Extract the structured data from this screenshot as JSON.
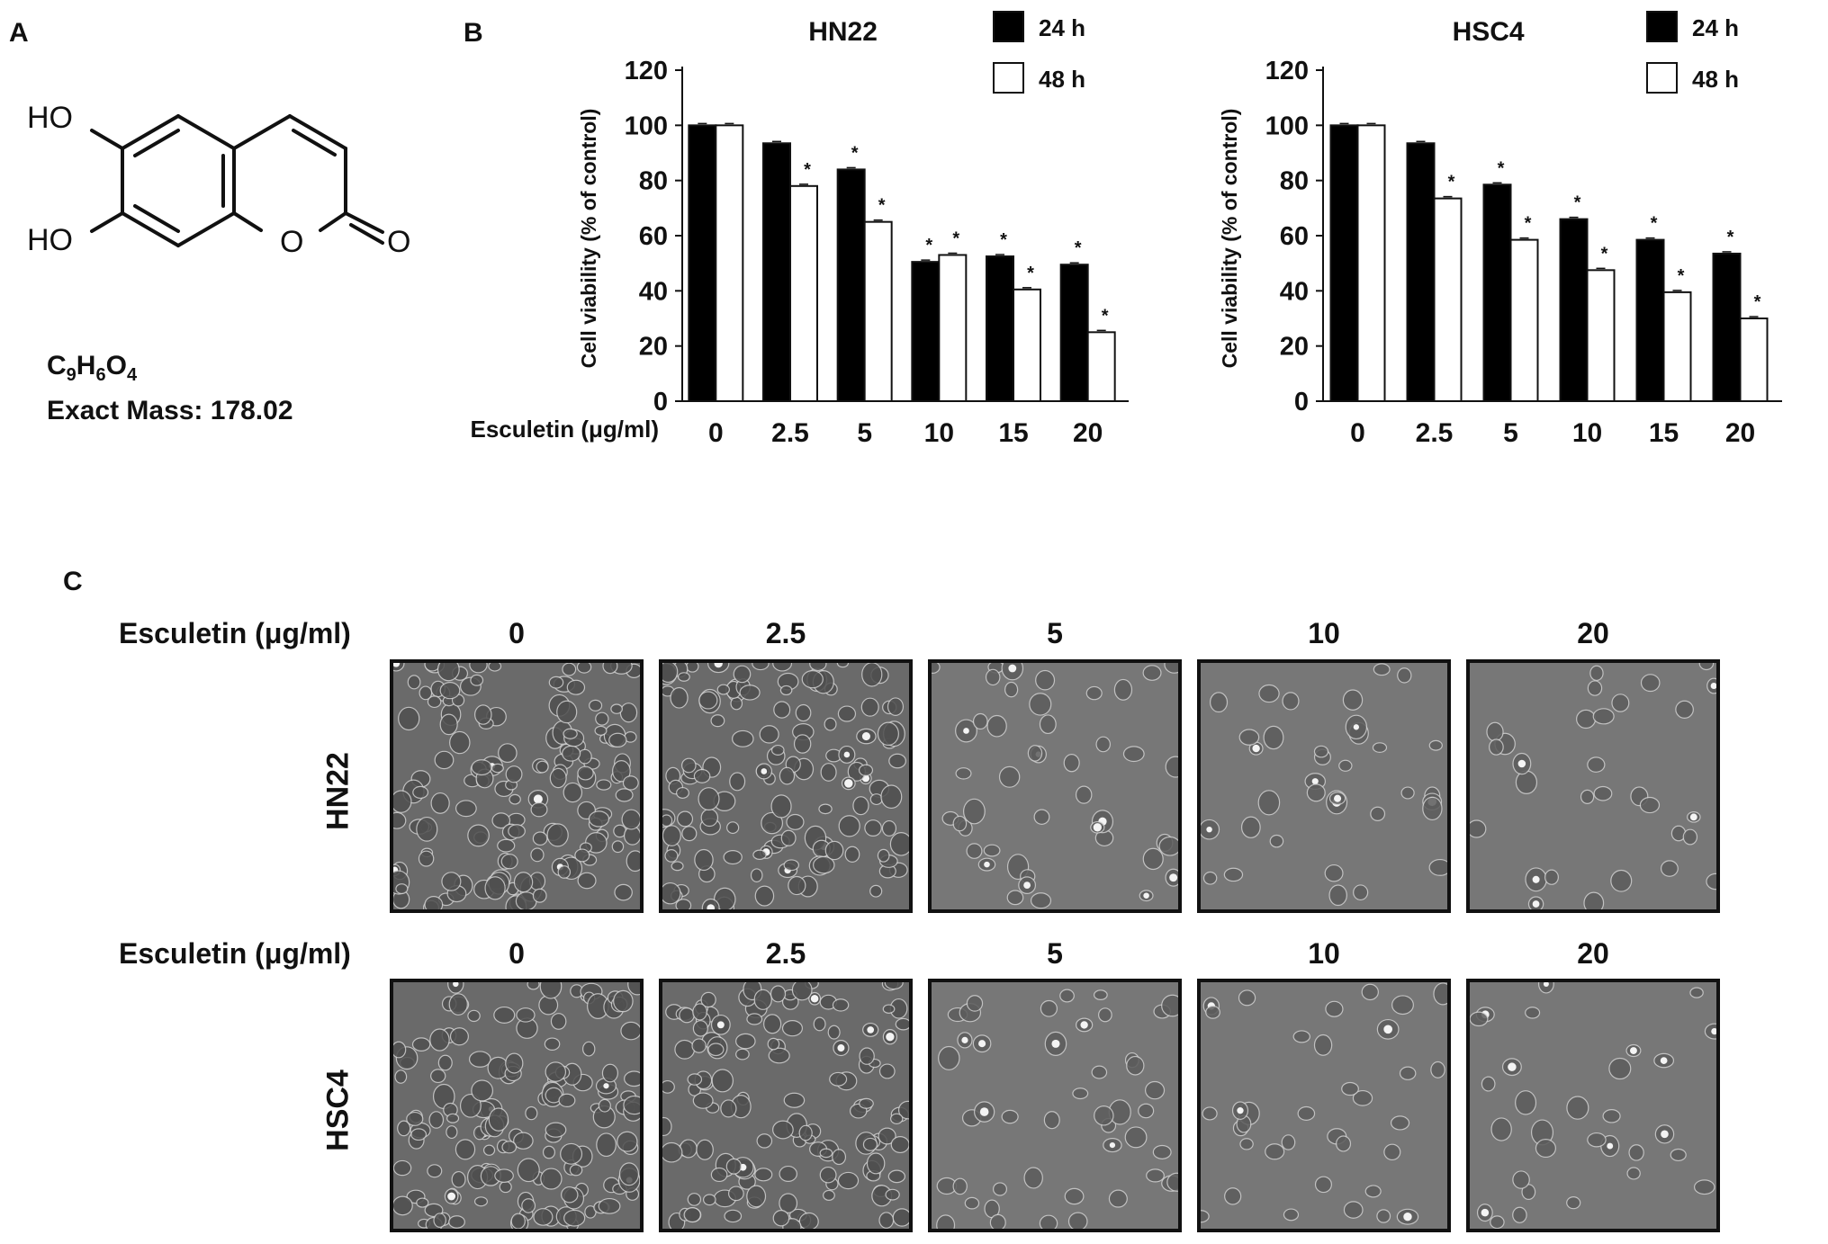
{
  "panels": {
    "a": "A",
    "b": "B",
    "c": "C"
  },
  "molecule": {
    "oh_top": "HO",
    "oh_bottom": "HO",
    "ring_o": "O",
    "carbonyl_o": "O",
    "formula_c": "C",
    "formula_c_sub": "9",
    "formula_h": "H",
    "formula_h_sub": "6",
    "formula_o": "O",
    "formula_o_sub": "4",
    "exact_mass": "Exact Mass: 178.02"
  },
  "chart_data": [
    {
      "type": "bar",
      "title": "HN22",
      "ylabel": "Cell viability (% of control)",
      "xlabel": "Esculetin (μg/ml)",
      "categories": [
        "0",
        "2.5",
        "5",
        "10",
        "15",
        "20"
      ],
      "ylim": [
        0,
        120
      ],
      "yticks": [
        "0",
        "20",
        "40",
        "60",
        "80",
        "100",
        "120"
      ],
      "legend_position": "top-right",
      "series": [
        {
          "name": "24 h",
          "color": "#000000",
          "values": [
            100,
            93.5,
            84,
            50.5,
            52.5,
            49.5
          ],
          "sig": [
            "",
            "",
            "*",
            "*",
            "*",
            "*"
          ]
        },
        {
          "name": "48 h",
          "color": "#ffffff",
          "values": [
            100,
            78,
            65,
            53,
            40.5,
            25
          ],
          "sig": [
            "",
            "*",
            "*",
            "*",
            "*",
            "*"
          ]
        }
      ]
    },
    {
      "type": "bar",
      "title": "HSC4",
      "ylabel": "Cell viability (% of control)",
      "xlabel": "",
      "categories": [
        "0",
        "2.5",
        "5",
        "10",
        "15",
        "20"
      ],
      "ylim": [
        0,
        120
      ],
      "yticks": [
        "0",
        "20",
        "40",
        "60",
        "80",
        "100",
        "120"
      ],
      "legend_position": "top-right",
      "series": [
        {
          "name": "24 h",
          "color": "#000000",
          "values": [
            100,
            93.5,
            78.5,
            66,
            58.5,
            53.5
          ],
          "sig": [
            "",
            "",
            "*",
            "*",
            "*",
            "*"
          ]
        },
        {
          "name": "48 h",
          "color": "#ffffff",
          "values": [
            100,
            73.5,
            58.5,
            47.5,
            39.5,
            30
          ],
          "sig": [
            "",
            "*",
            "*",
            "*",
            "*",
            "*"
          ]
        }
      ]
    }
  ],
  "micrographs": {
    "row_label": "Esculetin (μg/ml)",
    "doses": [
      "0",
      "2.5",
      "5",
      "10",
      "20"
    ],
    "cell_lines": [
      "HN22",
      "HSC4"
    ]
  }
}
